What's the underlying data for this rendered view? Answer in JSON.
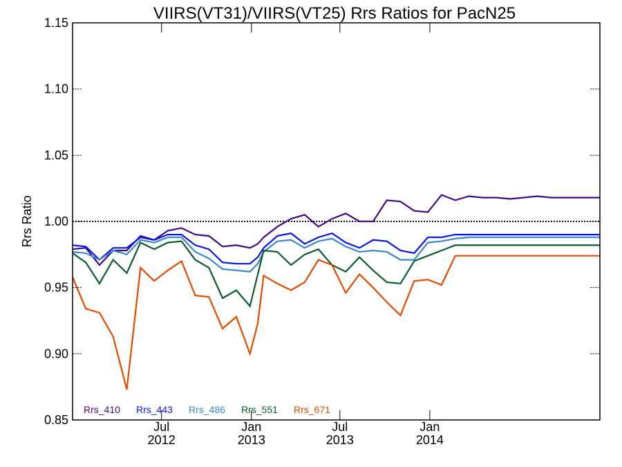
{
  "chart_data": {
    "type": "line",
    "title": "VIIRS(VT31)/VIIRS(VT25)  Rrs Ratios for PacN25",
    "xlabel": "",
    "ylabel": "Rrs Ratio",
    "xlim": [
      "2012-01-01",
      "2014-12-15"
    ],
    "ylim": [
      0.85,
      1.15
    ],
    "yticks": [
      {
        "value": 0.85,
        "label": "0.85"
      },
      {
        "value": 0.9,
        "label": "0.90"
      },
      {
        "value": 0.95,
        "label": "0.95"
      },
      {
        "value": 1.0,
        "label": "1.00"
      },
      {
        "value": 1.05,
        "label": "1.05"
      },
      {
        "value": 1.1,
        "label": "1.10"
      },
      {
        "value": 1.15,
        "label": "1.15"
      }
    ],
    "xticks": [
      {
        "date": "2012-07-01",
        "month": "Jul",
        "year": "2012"
      },
      {
        "date": "2013-01-01",
        "month": "Jan",
        "year": "2013"
      },
      {
        "date": "2013-07-01",
        "month": "Jul",
        "year": "2013"
      },
      {
        "date": "2014-01-01",
        "month": "Jan",
        "year": "2014"
      }
    ],
    "reference_line": 1.0,
    "legend_position": "bottom-left",
    "x": [
      "2012-01-01",
      "2012-01-28",
      "2012-02-25",
      "2012-03-24",
      "2012-04-21",
      "2012-05-19",
      "2012-06-16",
      "2012-07-14",
      "2012-08-11",
      "2012-09-08",
      "2012-10-06",
      "2012-11-03",
      "2012-12-01",
      "2012-12-29",
      "2013-01-14",
      "2013-01-26",
      "2013-02-23",
      "2013-03-23",
      "2013-04-20",
      "2013-05-18",
      "2013-06-15",
      "2013-07-13",
      "2013-08-10",
      "2013-09-07",
      "2013-10-05",
      "2013-11-02",
      "2013-11-30",
      "2013-12-28",
      "2014-01-25",
      "2014-02-22",
      "2014-03-22",
      "2014-04-19",
      "2014-05-17",
      "2014-06-14",
      "2014-07-12",
      "2014-08-09",
      "2014-09-06",
      "2014-10-04",
      "2014-11-01",
      "2014-11-29",
      "2014-12-15"
    ],
    "series": [
      {
        "name": "Rrs_410",
        "color": "#3d0a80",
        "values": [
          0.979,
          0.98,
          0.967,
          0.978,
          0.978,
          0.989,
          0.986,
          0.993,
          0.995,
          0.99,
          0.989,
          0.981,
          0.982,
          0.98,
          0.983,
          0.988,
          0.996,
          1.002,
          1.005,
          0.996,
          1.002,
          1.006,
          1.0,
          1.0,
          1.016,
          1.015,
          1.008,
          1.007,
          1.02,
          1.016,
          1.019,
          1.018,
          1.018,
          1.017,
          1.018,
          1.019,
          1.018,
          1.018,
          1.018,
          1.018,
          1.018
        ]
      },
      {
        "name": "Rrs_443",
        "color": "#0a14e6",
        "values": [
          0.982,
          0.981,
          0.971,
          0.98,
          0.98,
          0.988,
          0.986,
          0.99,
          0.99,
          0.982,
          0.979,
          0.969,
          0.968,
          0.968,
          0.973,
          0.98,
          0.989,
          0.991,
          0.983,
          0.988,
          0.991,
          0.984,
          0.98,
          0.986,
          0.985,
          0.978,
          0.976,
          0.988,
          0.988,
          0.99,
          0.99,
          0.99,
          0.99,
          0.99,
          0.99,
          0.99,
          0.99,
          0.99,
          0.99,
          0.99,
          0.99
        ]
      },
      {
        "name": "Rrs_486",
        "color": "#3c87c8",
        "values": [
          0.977,
          0.976,
          0.971,
          0.978,
          0.975,
          0.986,
          0.984,
          0.988,
          0.988,
          0.977,
          0.972,
          0.964,
          0.963,
          0.962,
          0.968,
          0.977,
          0.985,
          0.986,
          0.98,
          0.985,
          0.987,
          0.981,
          0.977,
          0.978,
          0.977,
          0.971,
          0.971,
          0.984,
          0.985,
          0.987,
          0.988,
          0.988,
          0.988,
          0.988,
          0.988,
          0.988,
          0.988,
          0.988,
          0.988,
          0.988,
          0.988
        ]
      },
      {
        "name": "Rrs_551",
        "color": "#0a5a2d",
        "values": [
          0.976,
          0.969,
          0.953,
          0.971,
          0.961,
          0.984,
          0.979,
          0.984,
          0.985,
          0.971,
          0.965,
          0.942,
          0.948,
          0.936,
          0.96,
          0.978,
          0.977,
          0.967,
          0.975,
          0.979,
          0.967,
          0.962,
          0.973,
          0.963,
          0.954,
          0.953,
          0.97,
          0.974,
          0.978,
          0.982,
          0.982,
          0.982,
          0.982,
          0.982,
          0.982,
          0.982,
          0.982,
          0.982,
          0.982,
          0.982,
          0.982
        ]
      },
      {
        "name": "Rrs_671",
        "color": "#e04a00",
        "values": [
          0.958,
          0.934,
          0.931,
          0.913,
          0.873,
          0.965,
          0.955,
          0.963,
          0.97,
          0.944,
          0.943,
          0.919,
          0.928,
          0.9,
          0.923,
          0.959,
          0.953,
          0.948,
          0.954,
          0.971,
          0.967,
          0.946,
          0.96,
          0.95,
          0.939,
          0.929,
          0.955,
          0.956,
          0.952,
          0.974,
          0.974,
          0.974,
          0.974,
          0.974,
          0.974,
          0.974,
          0.974,
          0.974,
          0.974,
          0.974,
          0.974
        ]
      }
    ]
  }
}
